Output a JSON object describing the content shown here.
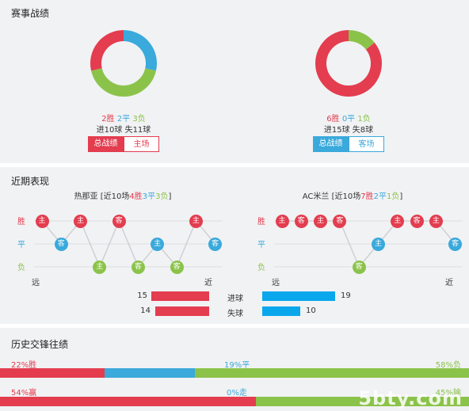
{
  "colors": {
    "win": "#e33d4f",
    "draw": "#3aa9db",
    "loss": "#8bc34a",
    "goal_bar": "#0aa7ec",
    "bg": "#f1f2f4"
  },
  "season": {
    "title": "赛事战绩",
    "left": {
      "donut": {
        "win": 2,
        "draw": 2,
        "loss": 3
      },
      "win_text": "2胜",
      "draw_text": "2平",
      "loss_text": "3负",
      "goals_text": "进10球 失11球",
      "tab_active": "总战绩",
      "tab_other": "主场"
    },
    "right": {
      "donut": {
        "win": 6,
        "draw": 0,
        "loss": 1
      },
      "win_text": "6胜",
      "draw_text": "0平",
      "loss_text": "1负",
      "goals_text": "进15球 失8球",
      "tab_active": "总战绩",
      "tab_other": "客场"
    }
  },
  "recent": {
    "title": "近期表现",
    "axis_labels": {
      "win": "胜",
      "draw": "平",
      "loss": "负",
      "far": "远",
      "near": "近"
    },
    "left": {
      "team": "热那亚",
      "prefix": "[近10场",
      "w": "4胜",
      "d": "3平",
      "l": "3负",
      "suffix": "]",
      "matches": [
        {
          "venue": "主",
          "result": "win"
        },
        {
          "venue": "客",
          "result": "draw"
        },
        {
          "venue": "主",
          "result": "win"
        },
        {
          "venue": "主",
          "result": "loss"
        },
        {
          "venue": "客",
          "result": "win"
        },
        {
          "venue": "客",
          "result": "loss"
        },
        {
          "venue": "主",
          "result": "draw"
        },
        {
          "venue": "客",
          "result": "loss"
        },
        {
          "venue": "主",
          "result": "win"
        },
        {
          "venue": "客",
          "result": "draw"
        }
      ]
    },
    "right": {
      "team": "AC米兰",
      "prefix": "[近10场",
      "w": "7胜",
      "d": "2平",
      "l": "1负",
      "suffix": "]",
      "matches": [
        {
          "venue": "主",
          "result": "win"
        },
        {
          "venue": "客",
          "result": "win"
        },
        {
          "venue": "主",
          "result": "win"
        },
        {
          "venue": "客",
          "result": "win"
        },
        {
          "venue": "客",
          "result": "loss"
        },
        {
          "venue": "主",
          "result": "draw"
        },
        {
          "venue": "主",
          "result": "win"
        },
        {
          "venue": "客",
          "result": "win"
        },
        {
          "venue": "主",
          "result": "win"
        },
        {
          "venue": "客",
          "result": "draw"
        }
      ]
    },
    "goals_label": "进球",
    "conceded_label": "失球",
    "left_goals": 15,
    "left_conceded": 14,
    "right_goals": 19,
    "right_conceded": 10,
    "bar_max": 19
  },
  "history": {
    "title": "历史交锋往绩",
    "row1": {
      "win": 22,
      "draw": 19,
      "loss": 58,
      "win_text": "22%胜",
      "draw_text": "19%平",
      "loss_text": "58%负"
    },
    "row2": {
      "win": 54,
      "draw": 0,
      "loss": 45,
      "win_text": "54%赢",
      "draw_text": "0%走",
      "loss_text": "45%输"
    }
  },
  "watermark": "5bty.com"
}
